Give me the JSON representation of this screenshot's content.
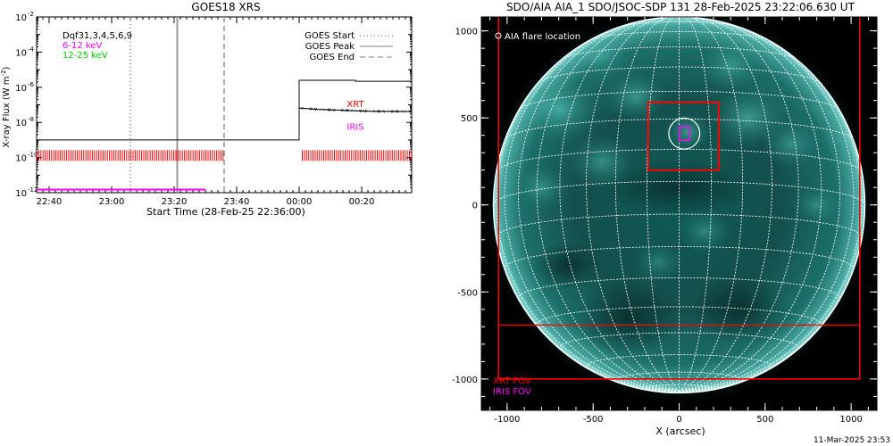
{
  "timestamp": "11-Mar-2025 23:53",
  "chart_data": [
    {
      "type": "line",
      "title": "GOES18 XRS",
      "xlabel": "Start Time (28-Feb-25 22:36:00)",
      "ylabel": "X-ray Flux (W m",
      "ylabel_exp": "-2",
      "ylabel_close": ")",
      "xlim": [
        "22:36",
        "00:36"
      ],
      "ylim": [
        1e-12,
        0.01
      ],
      "y_scale": "log",
      "y_ticks": [
        {
          "value": 0.01,
          "label": "10",
          "exp": "-2"
        },
        {
          "value": 0.0001,
          "label": "10",
          "exp": "-4"
        },
        {
          "value": 1e-06,
          "label": "10",
          "exp": "-6"
        },
        {
          "value": 1e-08,
          "label": "10",
          "exp": "-8"
        },
        {
          "value": 1e-10,
          "label": "10",
          "exp": "-10"
        },
        {
          "value": 1e-12,
          "label": "10",
          "exp": "-12"
        }
      ],
      "x_ticks": [
        "22:40",
        "23:00",
        "23:20",
        "23:40",
        "00:00",
        "00:20"
      ],
      "legend_left": {
        "dqf": "Dqf31,3,4,5,6,9",
        "low": "6-12 keV",
        "high": "12-25 keV"
      },
      "legend_right": [
        {
          "label": "GOES Start",
          "style": "dotted",
          "time": "23:06"
        },
        {
          "label": "GOES Peak",
          "style": "solid",
          "time": "23:21"
        },
        {
          "label": "GOES End",
          "style": "dashed",
          "time": "23:36"
        }
      ],
      "annotations": [
        {
          "text": "XRT",
          "color": "#ff0000",
          "time": "00:18",
          "flux": 1.2e-07
        },
        {
          "text": "IRIS",
          "color": "#ff00ff",
          "time": "00:18",
          "flux": 6e-09
        }
      ],
      "series": [
        {
          "name": "6-12 keV",
          "color": "#000000",
          "points": [
            [
              "22:36",
              1e-09
            ],
            [
              "00:00",
              1e-09
            ],
            [
              "00:00",
              2.5e-06
            ],
            [
              "00:18",
              2.5e-06
            ],
            [
              "00:18",
              2.2e-06
            ],
            [
              "00:36",
              2.2e-06
            ]
          ]
        },
        {
          "name": "12-25 keV",
          "color": "#000000",
          "points": [
            [
              "00:00",
              6.5e-08
            ],
            [
              "00:06",
              5.5e-08
            ],
            [
              "00:12",
              5e-08
            ],
            [
              "00:18",
              4.6e-08
            ],
            [
              "00:24",
              4.3e-08
            ],
            [
              "00:30",
              4.2e-08
            ],
            [
              "00:36",
              4.2e-08
            ]
          ]
        }
      ],
      "xrt_coverage": {
        "color": "#ff0000",
        "flux": 1.3e-10,
        "intervals": [
          [
            "22:36",
            "23:36"
          ],
          [
            "00:01",
            "00:36"
          ]
        ]
      },
      "iris_coverage": {
        "color": "#ff00ff",
        "flux": 1.5e-12,
        "intervals": [
          [
            "22:36",
            "23:30"
          ]
        ]
      }
    },
    {
      "type": "image",
      "title": "SDO/AIA AIA_1 SDO/JSOC-SDP 131 28-Feb-2025 23:22:06.630 UT",
      "xlabel": "X (arcsec)",
      "xlim": [
        -1150,
        1150
      ],
      "ylim": [
        -1180,
        1080
      ],
      "x_ticks": [
        -1000,
        -500,
        0,
        500,
        1000
      ],
      "y_ticks": [
        1000,
        500,
        0,
        -500,
        -1000
      ],
      "x_tick_labels": [
        "-1000",
        "-500",
        "0",
        "500",
        "1000"
      ],
      "y_tick_labels": [
        "1000",
        "500",
        "0",
        "-500",
        "-1000"
      ],
      "legend": {
        "flare_label": "AIA flare location"
      },
      "fov_labels": [
        {
          "text": "XRT FOV",
          "color": "#ff0000"
        },
        {
          "text": "IRIS FOV",
          "color": "#ff00ff"
        }
      ],
      "sun_radius": 1080,
      "xrt_fov_outer": {
        "x": [
          -1050,
          1050
        ],
        "y": [
          -1000,
          1100
        ]
      },
      "xrt_fov_inner": {
        "x": [
          -1050,
          1050
        ],
        "y": [
          -1000,
          -690
        ]
      },
      "xrt_box": {
        "x": [
          -180,
          230
        ],
        "y": [
          200,
          590
        ]
      },
      "iris_box": {
        "x": [
          0,
          60
        ],
        "y": [
          370,
          450
        ]
      },
      "flare_circle": {
        "x": 30,
        "y": 410,
        "r": 90
      },
      "grid_step_deg": 10
    }
  ]
}
